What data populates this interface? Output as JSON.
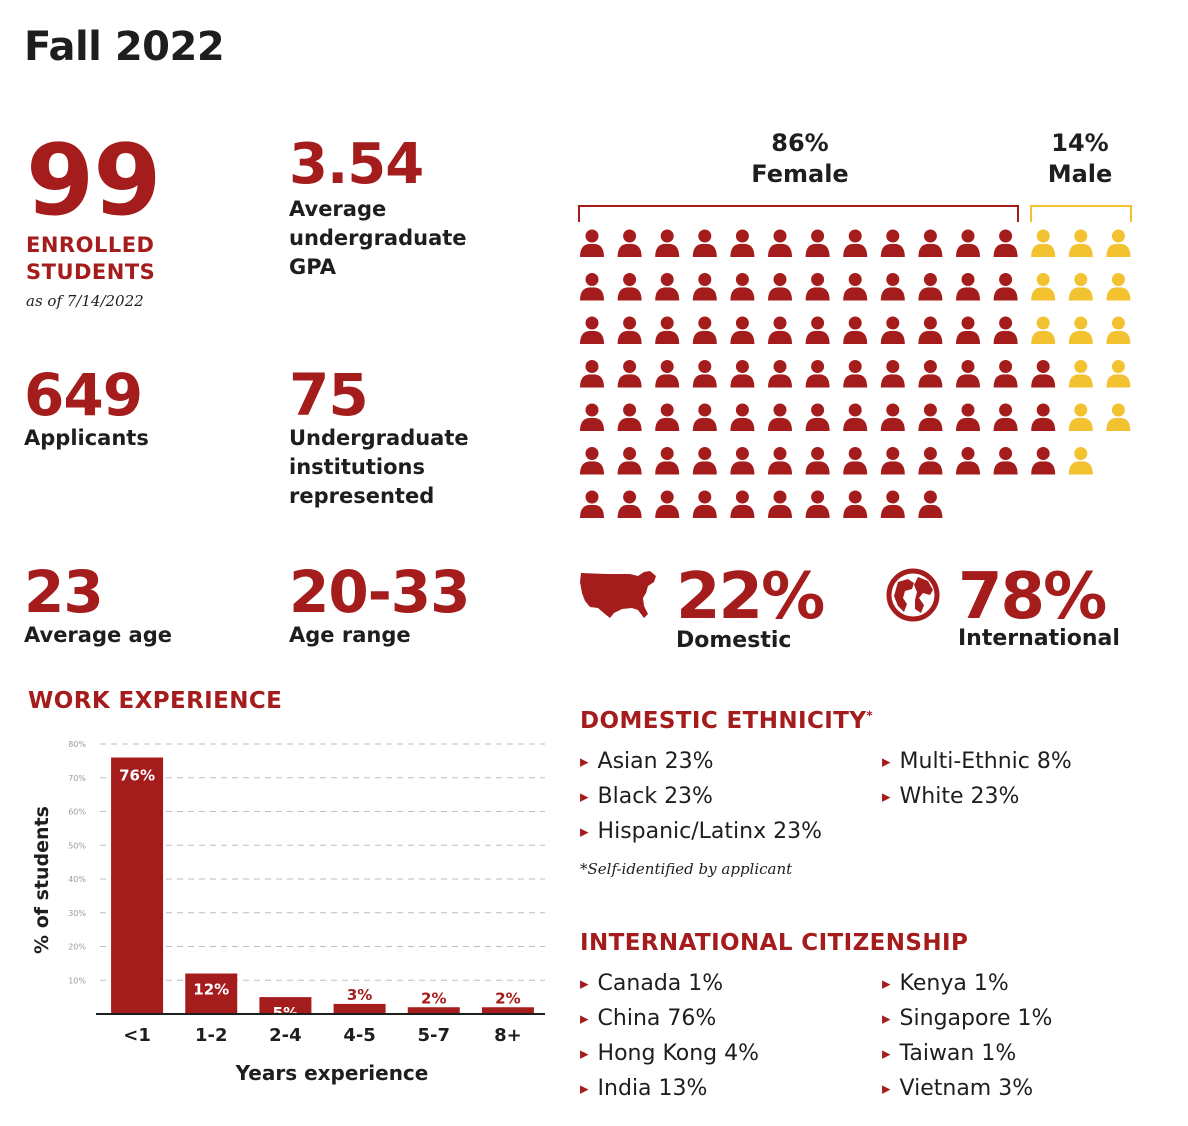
{
  "title": "Fall 2022",
  "stats": {
    "enrolled": {
      "value": "99",
      "label_line1": "ENROLLED",
      "label_line2": "STUDENTS",
      "note": "as of 7/14/2022"
    },
    "gpa": {
      "value": "3.54",
      "label_line1": "Average",
      "label_line2": "undergraduate",
      "label_line3": "GPA"
    },
    "applicants": {
      "value": "649",
      "label": "Applicants"
    },
    "institutions": {
      "value": "75",
      "label_line1": "Undergraduate",
      "label_line2": "institutions",
      "label_line3": "represented"
    },
    "avg_age": {
      "value": "23",
      "label": "Average age"
    },
    "age_range": {
      "value": "20-33",
      "label": "Age range"
    }
  },
  "gender": {
    "female_pct": "86%",
    "female_label": "Female",
    "male_pct": "14%",
    "male_label": "Male",
    "female_count": 85,
    "male_count": 14,
    "female_color": "#a51c1c",
    "male_color": "#f2c230"
  },
  "origin": {
    "domestic_pct": "22%",
    "domestic_label": "Domestic",
    "domestic_icon": "usa-map-icon",
    "international_pct": "78%",
    "international_label": "International",
    "international_icon": "globe-icon"
  },
  "work_experience": {
    "title": "WORK EXPERIENCE"
  },
  "chart_data": {
    "type": "bar",
    "title": "WORK EXPERIENCE",
    "categories": [
      "<1",
      "1-2",
      "2-4",
      "4-5",
      "5-7",
      "8+"
    ],
    "values": [
      76,
      12,
      5,
      3,
      2,
      2
    ],
    "value_labels": [
      "76%",
      "12%",
      "5%",
      "3%",
      "2%",
      "2%"
    ],
    "xlabel": "Years experience",
    "ylabel": "% of students",
    "y_ticks": [
      "10%",
      "20%",
      "30%",
      "40%",
      "50%",
      "60%",
      "70%",
      "80%"
    ],
    "ylim": [
      0,
      80
    ],
    "grid": true,
    "color": "#a51c1c"
  },
  "domestic_ethnicity": {
    "title": "DOMESTIC ETHNICITY",
    "title_mark": "*",
    "col1": [
      "Asian 23%",
      "Black 23%",
      "Hispanic/Latinx 23%"
    ],
    "col2": [
      "Multi-Ethnic 8%",
      "White 23%"
    ],
    "note": "*Self-identified by applicant"
  },
  "international_citizenship": {
    "title": "INTERNATIONAL CITIZENSHIP",
    "col1": [
      "Canada 1%",
      "China 76%",
      "Hong Kong 4%",
      "India 13%"
    ],
    "col2": [
      "Kenya 1%",
      "Singapore 1%",
      "Taiwan 1%",
      "Vietnam 3%"
    ]
  }
}
